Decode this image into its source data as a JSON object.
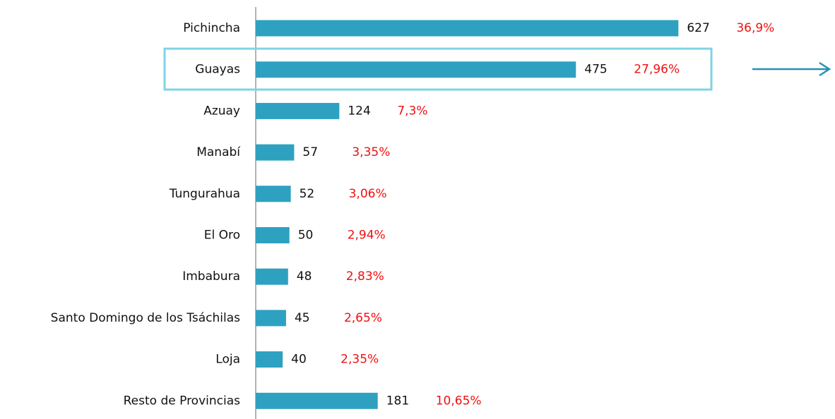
{
  "chart_data": {
    "type": "barh",
    "categories": [
      "Pichincha",
      "Guayas",
      "Azuay",
      "Manabí",
      "Tungurahua",
      "El Oro",
      "Imbabura",
      "Santo Domingo de los Tsáchilas",
      "Loja",
      "Resto de Provincias"
    ],
    "values": [
      627,
      475,
      124,
      57,
      52,
      50,
      48,
      45,
      40,
      181
    ],
    "shares": {
      "values": [
        36.9,
        27.96,
        7.3,
        3.35,
        3.06,
        2.94,
        2.83,
        2.65,
        2.35,
        10.65
      ],
      "value_labels": [
        "36,9%",
        "27,96%",
        "7,3%",
        "3,35%",
        "3,06%",
        "2,94%",
        "2,83%",
        "2,65%",
        "2,35%",
        "10,65%"
      ],
      "color": "#ee1111"
    },
    "color": "#2ea1c1",
    "xlim": [
      0,
      700
    ]
  }
}
